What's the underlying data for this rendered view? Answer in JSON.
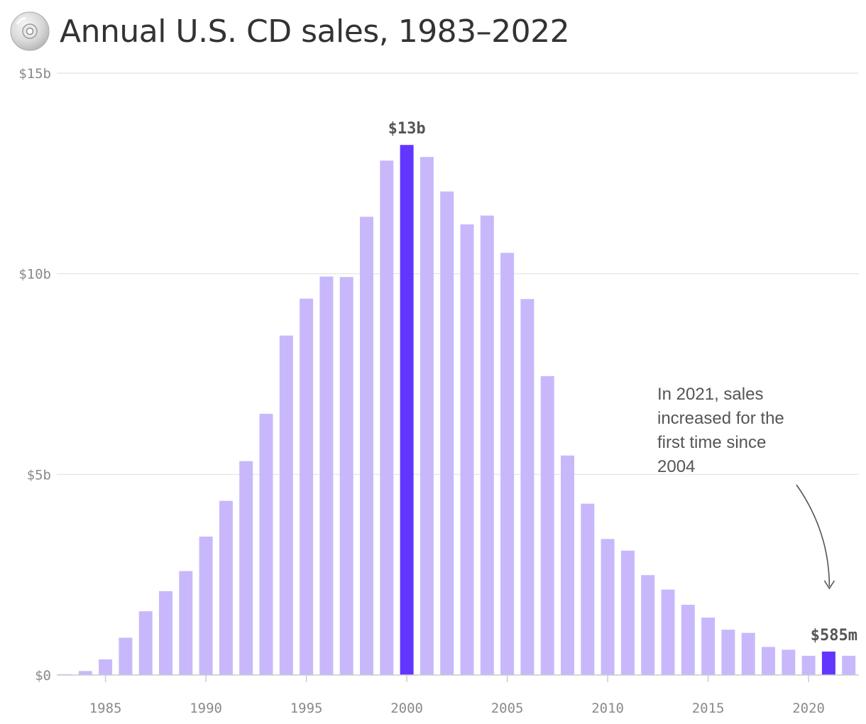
{
  "title": "Annual U.S. CD sales, 1983–2022",
  "icon": "cd-icon",
  "colors": {
    "bar": "#c8b8fb",
    "highlight": "#6236ff",
    "grid": "#e2e2e2",
    "axis": "#cccccc",
    "text": "#555555",
    "tick": "#8a8a8a"
  },
  "chart_data": {
    "type": "bar",
    "title": "Annual U.S. CD sales, 1983–2022",
    "xlabel": "",
    "ylabel": "",
    "ylim": [
      0,
      15
    ],
    "unit": "billions of dollars",
    "grid": true,
    "x": [
      1983,
      1984,
      1985,
      1986,
      1987,
      1988,
      1989,
      1990,
      1991,
      1992,
      1993,
      1994,
      1995,
      1996,
      1997,
      1998,
      1999,
      2000,
      2001,
      2002,
      2003,
      2004,
      2005,
      2006,
      2007,
      2008,
      2009,
      2010,
      2011,
      2012,
      2013,
      2014,
      2015,
      2016,
      2017,
      2018,
      2019,
      2020,
      2021,
      2022
    ],
    "values": [
      0.02,
      0.1,
      0.39,
      0.93,
      1.59,
      2.09,
      2.59,
      3.45,
      4.34,
      5.33,
      6.51,
      8.46,
      9.38,
      9.93,
      9.92,
      11.42,
      12.82,
      13.21,
      12.91,
      12.05,
      11.23,
      11.45,
      10.52,
      9.37,
      7.45,
      5.47,
      4.27,
      3.39,
      3.1,
      2.49,
      2.13,
      1.75,
      1.43,
      1.13,
      1.05,
      0.7,
      0.63,
      0.48,
      0.585,
      0.48
    ],
    "highlight": [
      2000,
      2021
    ],
    "y_ticks": [
      {
        "value": 0,
        "label": "$0"
      },
      {
        "value": 5,
        "label": "$5b"
      },
      {
        "value": 10,
        "label": "$10b"
      },
      {
        "value": 15,
        "label": "$15b"
      }
    ],
    "x_ticks": [
      {
        "value": 1985,
        "label": "1985"
      },
      {
        "value": 1990,
        "label": "1990"
      },
      {
        "value": 1995,
        "label": "1995"
      },
      {
        "value": 2000,
        "label": "2000"
      },
      {
        "value": 2005,
        "label": "2005"
      },
      {
        "value": 2010,
        "label": "2010"
      },
      {
        "value": 2015,
        "label": "2015"
      },
      {
        "value": 2020,
        "label": "2020"
      }
    ],
    "data_labels": [
      {
        "year": 2000,
        "label": "$13b"
      },
      {
        "year": 2021,
        "label": "$585m"
      }
    ],
    "annotation": {
      "year": 2021,
      "lines": [
        "In 2021, sales",
        "increased for the",
        "first time since",
        "2004"
      ]
    }
  }
}
